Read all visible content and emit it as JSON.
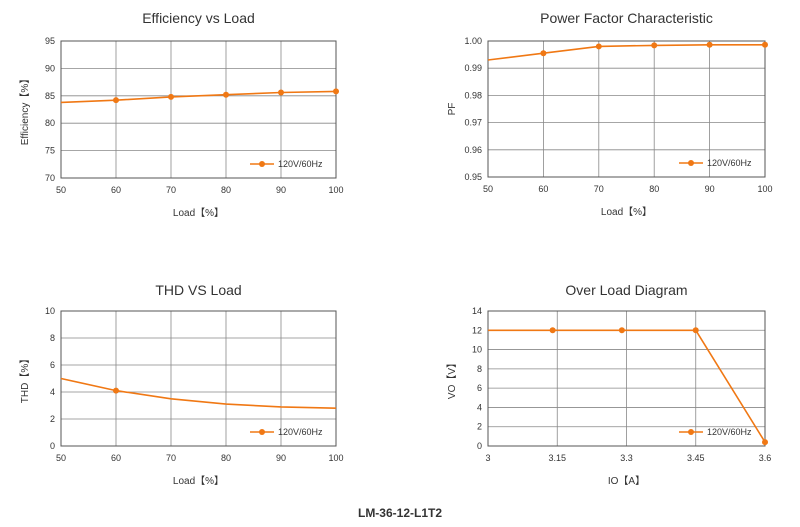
{
  "footer": {
    "model": "LM-36-12-L1T2"
  },
  "colors": {
    "series": "#f07814",
    "grid": "#888888",
    "frame": "#555555",
    "text": "#333333"
  },
  "chart_data": [
    {
      "id": "efficiency",
      "type": "line",
      "title": "Efficiency vs Load",
      "xlabel": "Load【%】",
      "ylabel": "Efficiency【%】",
      "xlim": [
        50,
        100
      ],
      "ylim": [
        70,
        95
      ],
      "xticks": [
        50,
        60,
        70,
        80,
        90,
        100
      ],
      "yticks": [
        70,
        75,
        80,
        85,
        90,
        95
      ],
      "xtick_labels": [
        "50",
        "60",
        "70",
        "80",
        "90",
        "100"
      ],
      "ytick_labels": [
        "70",
        "75",
        "80",
        "85",
        "90",
        "95"
      ],
      "grid": true,
      "legend_position": "bottom-right",
      "series": [
        {
          "name": "120V/60Hz",
          "x": [
            50,
            60,
            70,
            80,
            90,
            100
          ],
          "y": [
            83.8,
            84.2,
            84.8,
            85.2,
            85.6,
            85.8
          ],
          "markers": [
            false,
            true,
            true,
            true,
            true,
            true
          ]
        }
      ]
    },
    {
      "id": "power-factor",
      "type": "line",
      "title": "Power Factor Characteristic",
      "xlabel": "Load【%】",
      "ylabel": "PF",
      "xlim": [
        50,
        100
      ],
      "ylim": [
        0.95,
        1.0
      ],
      "xticks": [
        50,
        60,
        70,
        80,
        90,
        100
      ],
      "yticks": [
        0.95,
        0.96,
        0.97,
        0.98,
        0.99,
        1.0
      ],
      "xtick_labels": [
        "50",
        "60",
        "70",
        "80",
        "90",
        "100"
      ],
      "ytick_labels": [
        "0.95",
        "0.96",
        "0.97",
        "0.98",
        "0.99",
        "1.00"
      ],
      "grid": true,
      "legend_position": "bottom-right",
      "series": [
        {
          "name": "120V/60Hz",
          "x": [
            50,
            60,
            70,
            80,
            90,
            100
          ],
          "y": [
            0.993,
            0.9955,
            0.998,
            0.9984,
            0.9986,
            0.9986
          ],
          "markers": [
            false,
            true,
            true,
            true,
            true,
            true
          ]
        }
      ]
    },
    {
      "id": "thd",
      "type": "line",
      "title": "THD VS Load",
      "xlabel": "Load【%】",
      "ylabel": "THD【%】",
      "xlim": [
        50,
        100
      ],
      "ylim": [
        0,
        10
      ],
      "xticks": [
        50,
        60,
        70,
        80,
        90,
        100
      ],
      "yticks": [
        0,
        2,
        4,
        6,
        8,
        10
      ],
      "xtick_labels": [
        "50",
        "60",
        "70",
        "80",
        "90",
        "100"
      ],
      "ytick_labels": [
        "0",
        "2",
        "4",
        "6",
        "8",
        "10"
      ],
      "grid": true,
      "legend_position": "bottom-right",
      "series": [
        {
          "name": "120V/60Hz",
          "x": [
            50,
            60,
            70,
            80,
            90,
            100
          ],
          "y": [
            5.0,
            4.1,
            3.5,
            3.1,
            2.9,
            2.8
          ],
          "markers": [
            false,
            true,
            false,
            false,
            false,
            false
          ]
        }
      ]
    },
    {
      "id": "over-load",
      "type": "line",
      "title": "Over Load Diagram",
      "xlabel": "IO【A】",
      "ylabel": "VO【V】",
      "xlim": [
        3,
        3.6
      ],
      "ylim": [
        0,
        14
      ],
      "xticks": [
        3,
        3.15,
        3.3,
        3.45,
        3.6
      ],
      "yticks": [
        0,
        2,
        4,
        6,
        8,
        10,
        12,
        14
      ],
      "xtick_labels": [
        "3",
        "3.15",
        "3.3",
        "3.45",
        "3.6"
      ],
      "ytick_labels": [
        "0",
        "2",
        "4",
        "6",
        "8",
        "10",
        "12",
        "14"
      ],
      "grid": true,
      "legend_position": "bottom-right",
      "series": [
        {
          "name": "120V/60Hz",
          "x": [
            3,
            3.14,
            3.29,
            3.45,
            3.6
          ],
          "y": [
            12,
            12,
            12,
            12,
            0.4
          ],
          "markers": [
            false,
            true,
            true,
            true,
            true
          ]
        }
      ]
    }
  ]
}
